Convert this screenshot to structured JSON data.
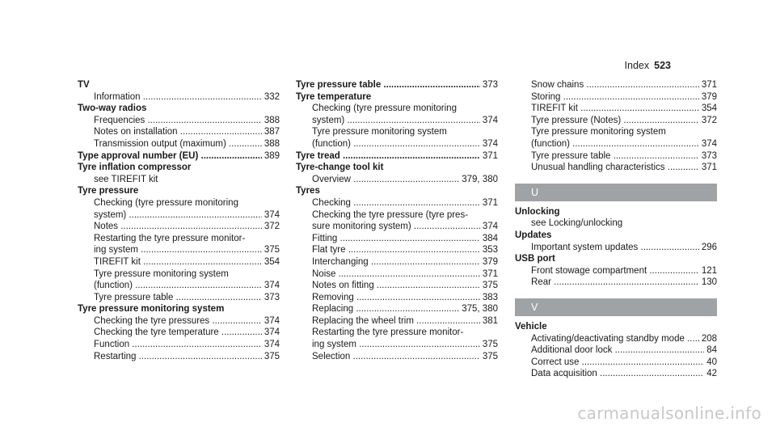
{
  "header": {
    "section": "Index",
    "page_number": "523"
  },
  "col1": [
    {
      "term": "TV",
      "subs": [
        {
          "text": "Information",
          "pages": "332"
        }
      ]
    },
    {
      "term": "Two-way radios",
      "subs": [
        {
          "text": "Frequencies",
          "pages": "388"
        },
        {
          "text": "Notes on installation",
          "pages": "387"
        },
        {
          "text": "Transmission output (maximum)",
          "pages": "388"
        }
      ]
    },
    {
      "term": "Type approval number (EU)",
      "pages": "389"
    },
    {
      "term": "Tyre inflation compressor",
      "see": "see TIREFIT kit"
    },
    {
      "term": "Tyre pressure",
      "subs": [
        {
          "lines": [
            "Checking (tyre pressure monitoring"
          ],
          "text": "system)",
          "pages": "374"
        },
        {
          "text": "Notes",
          "pages": "372"
        },
        {
          "lines": [
            "Restarting the tyre pressure monitor-"
          ],
          "text": "ing system",
          "pages": "375"
        },
        {
          "text": "TIREFIT kit",
          "pages": "354"
        },
        {
          "lines": [
            "Tyre pressure monitoring system"
          ],
          "text": "(function)",
          "pages": "374"
        },
        {
          "text": "Tyre pressure table",
          "pages": "373"
        }
      ]
    },
    {
      "term": "Tyre pressure monitoring system",
      "subs": [
        {
          "text": "Checking the tyre pressures",
          "pages": "374"
        },
        {
          "text": "Checking the tyre temperature",
          "pages": "374"
        },
        {
          "text": "Function",
          "pages": "374"
        },
        {
          "text": "Restarting",
          "pages": "375"
        }
      ]
    }
  ],
  "col2": [
    {
      "term": "Tyre pressure table",
      "pages": "373"
    },
    {
      "term": "Tyre temperature",
      "subs": [
        {
          "lines": [
            "Checking (tyre pressure monitoring"
          ],
          "text": "system)",
          "pages": "374"
        },
        {
          "lines": [
            "Tyre pressure monitoring system"
          ],
          "text": "(function)",
          "pages": "374"
        }
      ]
    },
    {
      "term": "Tyre tread",
      "pages": "371"
    },
    {
      "term": "Tyre-change tool kit",
      "subs": [
        {
          "text": "Overview",
          "pages": "379, 380"
        }
      ]
    },
    {
      "term": "Tyres",
      "subs": [
        {
          "text": "Checking",
          "pages": "371"
        },
        {
          "lines": [
            "Checking the tyre pressure (tyre pres-"
          ],
          "text": "sure monitoring system)",
          "pages": "374"
        },
        {
          "text": "Fitting",
          "pages": "384"
        },
        {
          "text": "Flat tyre",
          "pages": "353"
        },
        {
          "text": "Interchanging",
          "pages": "379"
        },
        {
          "text": "Noise",
          "pages": "371"
        },
        {
          "text": "Notes on fitting",
          "pages": "375"
        },
        {
          "text": "Removing",
          "pages": "383"
        },
        {
          "text": "Replacing",
          "pages": "375, 380"
        },
        {
          "text": "Replacing the wheel trim",
          "pages": "381"
        },
        {
          "lines": [
            "Restarting the tyre pressure monitor-"
          ],
          "text": "ing system",
          "pages": "375"
        },
        {
          "text": "Selection",
          "pages": "375"
        }
      ]
    }
  ],
  "col3": {
    "continued": [
      {
        "text": "Snow chains",
        "pages": "371"
      },
      {
        "text": "Storing",
        "pages": "379"
      },
      {
        "text": "TIREFIT kit",
        "pages": "354"
      },
      {
        "text": "Tyre pressure (Notes)",
        "pages": "372"
      },
      {
        "lines": [
          "Tyre pressure monitoring system"
        ],
        "text": "(function)",
        "pages": "374"
      },
      {
        "text": "Tyre pressure table",
        "pages": "373"
      },
      {
        "text": "Unusual handling characteristics",
        "pages": "371"
      }
    ],
    "letter_u": "U",
    "u_entries": [
      {
        "term": "Unlocking",
        "see": "see Locking/unlocking"
      },
      {
        "term": "Updates",
        "subs": [
          {
            "text": "Important system updates",
            "pages": "296"
          }
        ]
      },
      {
        "term": "USB port",
        "subs": [
          {
            "text": "Front stowage compartment",
            "pages": "121"
          },
          {
            "text": "Rear",
            "pages": "130"
          }
        ]
      }
    ],
    "letter_v": "V",
    "v_entries": [
      {
        "term": "Vehicle",
        "subs": [
          {
            "text": "Activating/deactivating standby mode",
            "pages": "208"
          },
          {
            "text": "Additional door lock",
            "pages": "84"
          },
          {
            "text": "Correct use",
            "pages": "40"
          },
          {
            "text": "Data acquisition",
            "pages": "42"
          }
        ]
      }
    ]
  },
  "watermark": "carmanualsonline.info"
}
